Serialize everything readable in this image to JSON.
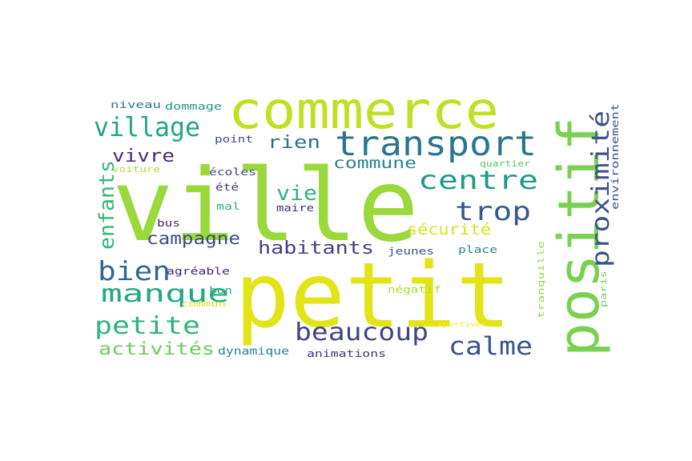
{
  "words": [
    {
      "text": "ville",
      "color": "#9ad93c"
    },
    {
      "text": "petit",
      "color": "#e2e418"
    },
    {
      "text": "commerce",
      "color": "#c2df23"
    },
    {
      "text": "positif",
      "color": "#7ad151"
    },
    {
      "text": "transport",
      "color": "#2a768e"
    },
    {
      "text": "village",
      "color": "#21a685"
    },
    {
      "text": "proximité",
      "color": "#3b528b"
    },
    {
      "text": "centre",
      "color": "#1f9a8a"
    },
    {
      "text": "trop",
      "color": "#38598c"
    },
    {
      "text": "rien",
      "color": "#2c728e"
    },
    {
      "text": "vivre",
      "color": "#482878"
    },
    {
      "text": "commune",
      "color": "#25848e"
    },
    {
      "text": "vie",
      "color": "#2fb47c"
    },
    {
      "text": "enfants",
      "color": "#35b779"
    },
    {
      "text": "sécurité",
      "color": "#d8e219"
    },
    {
      "text": "campagne",
      "color": "#3e4989"
    },
    {
      "text": "habitants",
      "color": "#433e85"
    },
    {
      "text": "bien",
      "color": "#31688e"
    },
    {
      "text": "manque",
      "color": "#22a884"
    },
    {
      "text": "petite",
      "color": "#2fb47c"
    },
    {
      "text": "beaucoup",
      "color": "#414487"
    },
    {
      "text": "calme",
      "color": "#3b528b"
    },
    {
      "text": "activités",
      "color": "#6ccd5a"
    },
    {
      "text": "dynamique",
      "color": "#26828e"
    },
    {
      "text": "animations",
      "color": "#46327e"
    },
    {
      "text": "niveau",
      "color": "#2a788e"
    },
    {
      "text": "dommage",
      "color": "#1f978b"
    },
    {
      "text": "point",
      "color": "#3e4a89"
    },
    {
      "text": "voiture",
      "color": "#b5de2b"
    },
    {
      "text": "écoles",
      "color": "#3f4788"
    },
    {
      "text": "été",
      "color": "#46337e"
    },
    {
      "text": "quartier",
      "color": "#52c569"
    },
    {
      "text": "environnement",
      "color": "#3b528b"
    },
    {
      "text": "mal",
      "color": "#2db27d"
    },
    {
      "text": "maire",
      "color": "#472a7a"
    },
    {
      "text": "bus",
      "color": "#481f70"
    },
    {
      "text": "jeunes",
      "color": "#39558c"
    },
    {
      "text": "place",
      "color": "#23898e"
    },
    {
      "text": "agréable",
      "color": "#482173"
    },
    {
      "text": "bon",
      "color": "#29af7f"
    },
    {
      "text": "commun",
      "color": "#dde318"
    },
    {
      "text": "négatif",
      "color": "#addc30"
    },
    {
      "text": "tranquille",
      "color": "#a0da39"
    },
    {
      "text": "paris",
      "color": "#6ece58"
    },
    {
      "text": "sportives",
      "color": "#fde725"
    }
  ]
}
